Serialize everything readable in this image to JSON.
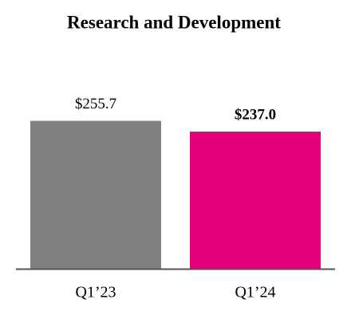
{
  "chart_data": {
    "type": "bar",
    "title": "Research and Development",
    "categories": [
      "Q1’23",
      "Q1’24"
    ],
    "values": [
      255.7,
      237.0
    ],
    "value_labels": [
      "$255.7",
      "$237.0"
    ],
    "colors": [
      "#808080",
      "#e6007e"
    ]
  }
}
